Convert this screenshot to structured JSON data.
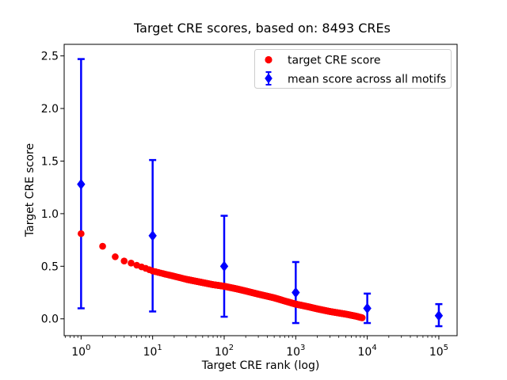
{
  "chart_data": {
    "type": "scatter",
    "title": "Target CRE scores, based on: 8493 CREs",
    "xlabel": "Target CRE rank (log)",
    "ylabel": "Target CRE score",
    "xscale": "log",
    "xlim": [
      0.58,
      180000
    ],
    "ylim": [
      -0.16,
      2.61
    ],
    "grid": false,
    "x_major_tick_values": [
      1,
      10,
      100,
      1000,
      10000,
      100000
    ],
    "x_major_tick_labels": [
      "10^0",
      "10^1",
      "10^2",
      "10^3",
      "10^4",
      "10^5"
    ],
    "y_tick_values": [
      0.0,
      0.5,
      1.0,
      1.5,
      2.0,
      2.5
    ],
    "y_tick_labels": [
      "0.0",
      "0.5",
      "1.0",
      "1.5",
      "2.0",
      "2.5"
    ],
    "legend": {
      "position": "upper right",
      "entries": [
        "target CRE score",
        "mean score across all motifs"
      ]
    },
    "series": [
      {
        "name": "target CRE score",
        "marker": "circle",
        "color": "#ff0000",
        "n_points": 8493,
        "anchor_x": [
          1,
          2,
          3,
          4,
          5,
          6,
          8,
          10,
          15,
          20,
          30,
          50,
          70,
          100,
          150,
          200,
          300,
          500,
          700,
          1000,
          1500,
          2000,
          3000,
          5000,
          7000,
          8493
        ],
        "anchor_y": [
          0.81,
          0.69,
          0.59,
          0.55,
          0.53,
          0.51,
          0.48,
          0.455,
          0.425,
          0.405,
          0.375,
          0.345,
          0.325,
          0.31,
          0.285,
          0.265,
          0.235,
          0.2,
          0.17,
          0.14,
          0.115,
          0.095,
          0.07,
          0.045,
          0.025,
          0.01
        ]
      },
      {
        "name": "mean score across all motifs",
        "marker": "diamond",
        "color": "#0000ff",
        "x": [
          1,
          10,
          100,
          1000,
          10000,
          100000
        ],
        "y": [
          1.28,
          0.79,
          0.5,
          0.25,
          0.1,
          0.03
        ],
        "err_low": [
          0.1,
          0.07,
          0.02,
          -0.04,
          -0.04,
          -0.07
        ],
        "err_high": [
          2.47,
          1.51,
          0.98,
          0.54,
          0.24,
          0.14
        ]
      }
    ]
  }
}
